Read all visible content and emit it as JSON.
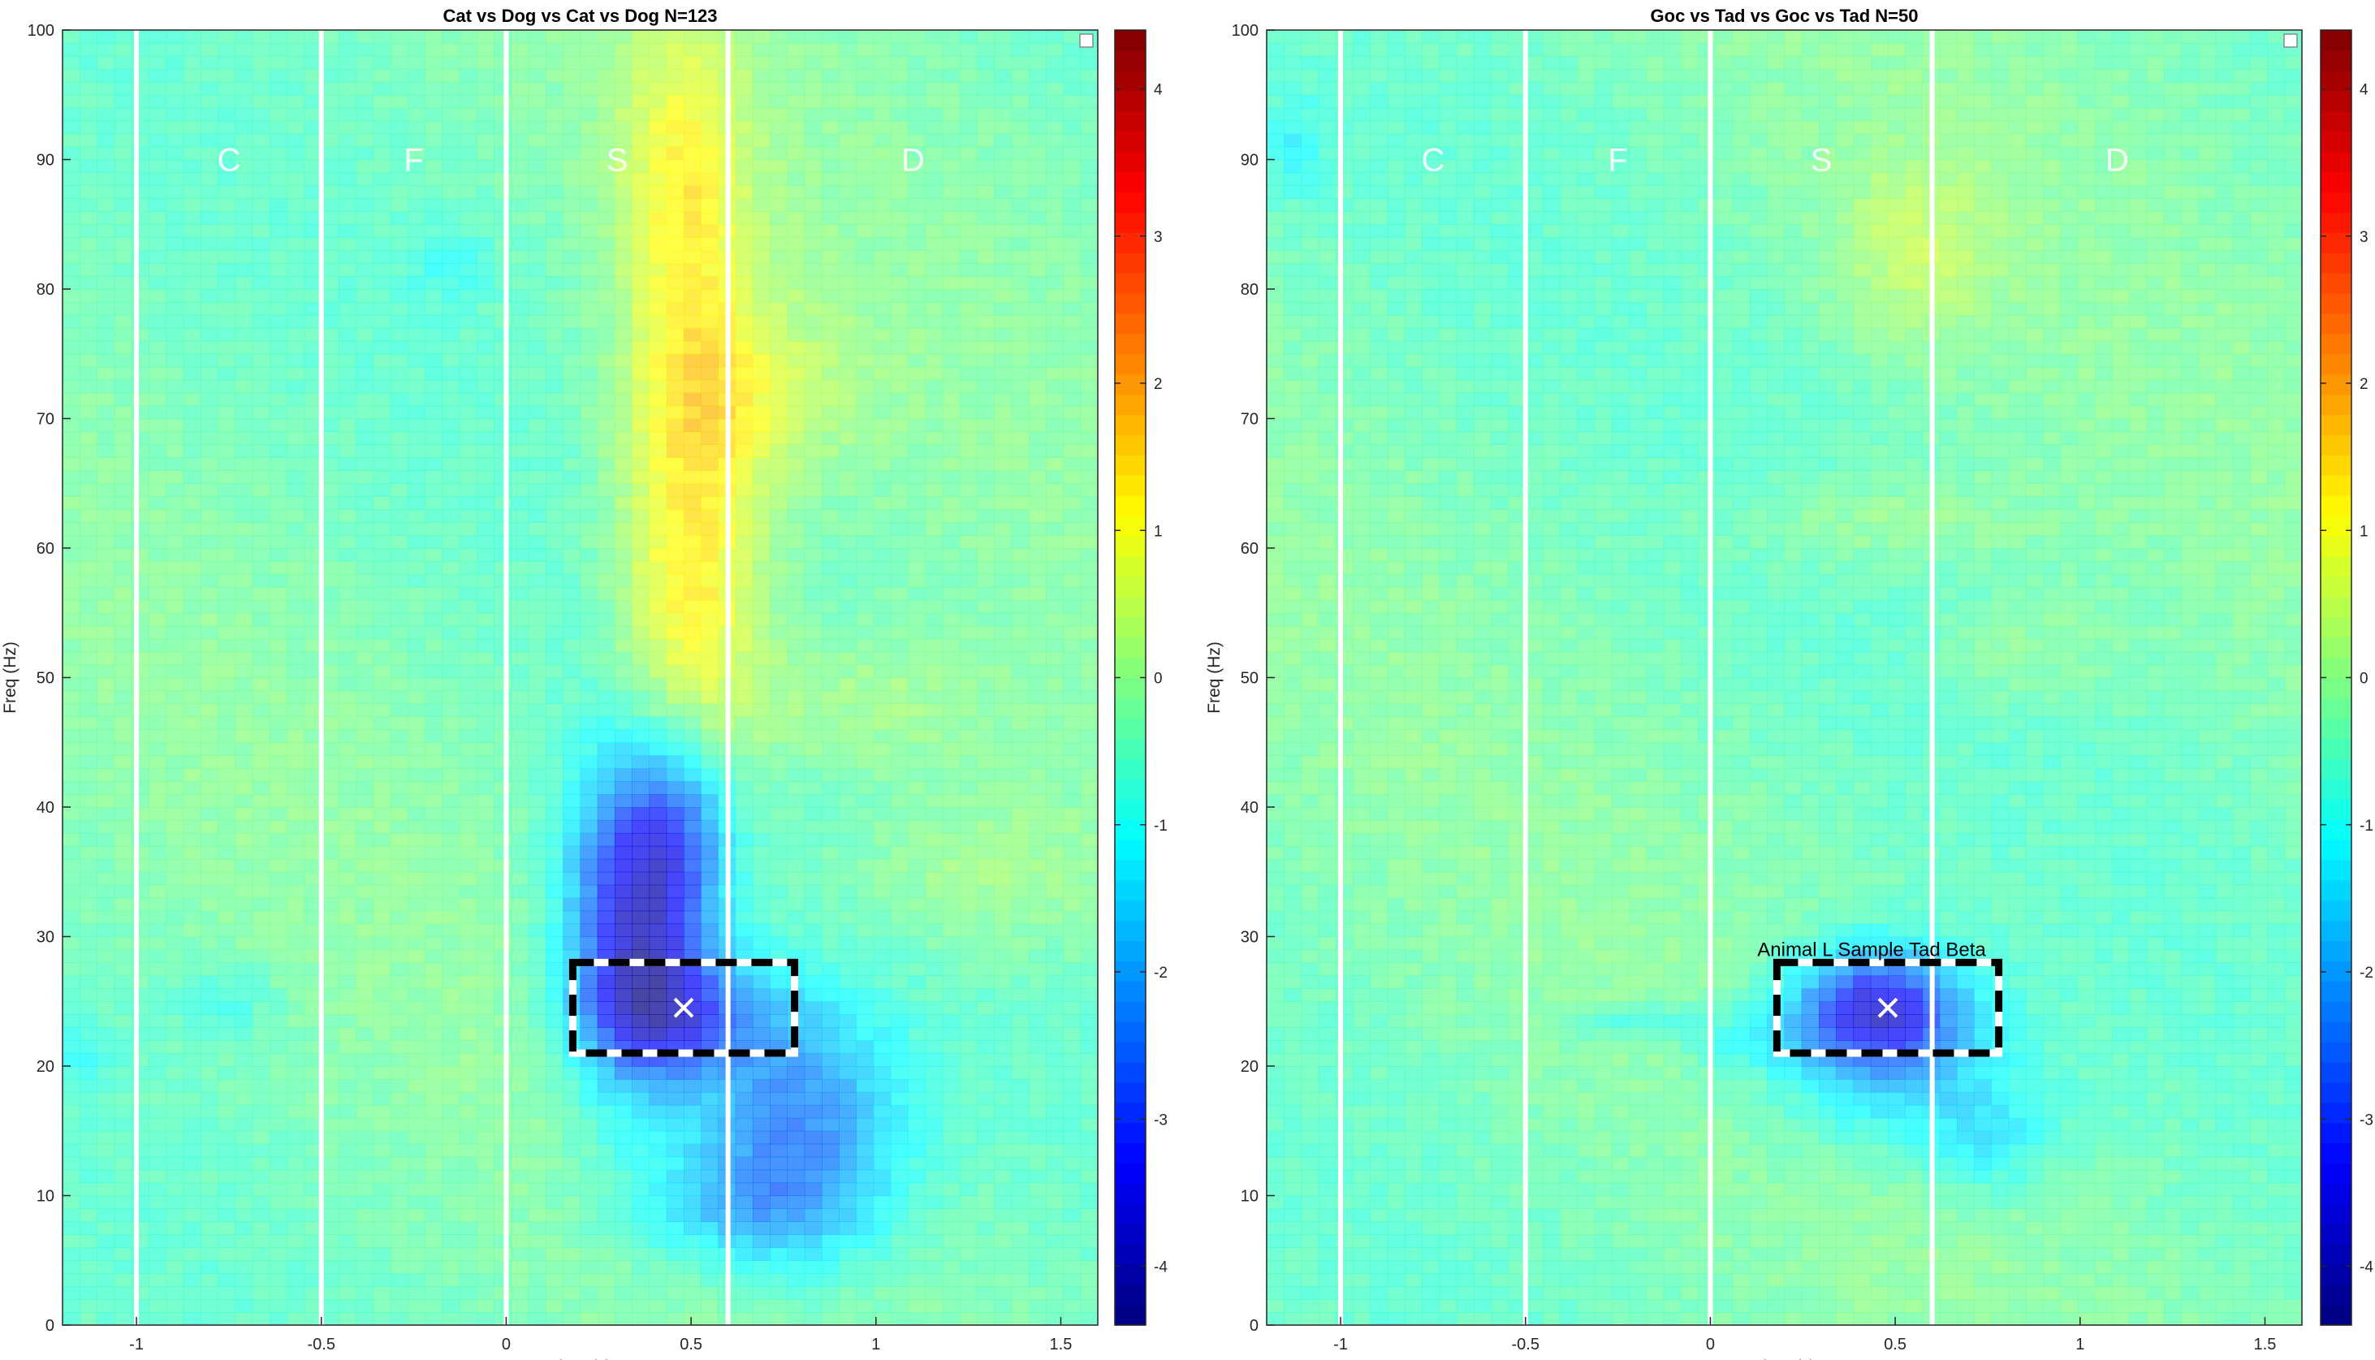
{
  "chart_data": [
    {
      "type": "heatmap",
      "title": "Cat vs Dog vs Cat vs Dog N=123",
      "xlabel": "Time (s)",
      "ylabel": "Freq (Hz)",
      "xlim": [
        -1.2,
        1.6
      ],
      "ylim": [
        0,
        100
      ],
      "xticks": [
        -1,
        -0.5,
        0,
        0.5,
        1,
        1.5
      ],
      "xtick_labels": [
        "-1",
        "-0.5",
        "0",
        "0.5",
        "1",
        "1.5"
      ],
      "yticks": [
        0,
        10,
        20,
        30,
        40,
        50,
        60,
        70,
        80,
        90,
        100
      ],
      "ytick_labels": [
        "0",
        "10",
        "20",
        "30",
        "40",
        "50",
        "60",
        "70",
        "80",
        "90",
        "100"
      ],
      "epoch_lines": [
        -1,
        -0.5,
        0,
        0.6
      ],
      "epoch_labels": [
        {
          "text": "C",
          "x": -0.75,
          "y": 90
        },
        {
          "text": "F",
          "x": -0.25,
          "y": 90
        },
        {
          "text": "S",
          "x": 0.3,
          "y": 90
        },
        {
          "text": "D",
          "x": 1.1,
          "y": 90
        }
      ],
      "roi": {
        "x0": 0.18,
        "x1": 0.78,
        "y0": 21,
        "y1": 28
      },
      "peak_marker": {
        "x": 0.48,
        "y": 24.5
      },
      "roi_label": "",
      "colorbar": {
        "ticks": [
          -4,
          -3,
          -2,
          -1,
          0,
          1,
          2,
          3,
          4
        ],
        "tick_labels": [
          "-4",
          "-3",
          "-2",
          "-1",
          "0",
          "1",
          "2",
          "3",
          "4"
        ],
        "range": [
          -4.4,
          4.4
        ]
      },
      "clusters": [
        {
          "cx": 0.35,
          "cy": 31,
          "sx": 0.13,
          "sy": 9,
          "amp": -3.4
        },
        {
          "cx": 0.48,
          "cy": 24,
          "sx": 0.17,
          "sy": 3.2,
          "amp": -1.8
        },
        {
          "cx": 0.78,
          "cy": 15,
          "sx": 0.2,
          "sy": 7,
          "amp": -2.1
        },
        {
          "cx": 0.6,
          "cy": 9,
          "sx": 0.22,
          "sy": 3,
          "amp": -0.9
        },
        {
          "cx": 0.48,
          "cy": 38,
          "sx": 0.1,
          "sy": 5,
          "amp": -1.2
        },
        {
          "cx": 0.5,
          "cy": 66,
          "sx": 0.14,
          "sy": 14,
          "amp": 1.2
        },
        {
          "cx": 0.65,
          "cy": 72,
          "sx": 0.2,
          "sy": 5,
          "amp": 0.8
        },
        {
          "cx": 0.48,
          "cy": 89,
          "sx": 0.12,
          "sy": 9,
          "amp": 1.1
        },
        {
          "cx": 0.5,
          "cy": 55,
          "sx": 0.14,
          "sy": 8,
          "amp": 0.9
        },
        {
          "cx": 0.95,
          "cy": 48,
          "sx": 0.28,
          "sy": 4,
          "amp": 0.6
        },
        {
          "cx": 1.3,
          "cy": 35,
          "sx": 0.28,
          "sy": 5,
          "amp": 0.65
        },
        {
          "cx": -0.75,
          "cy": 25,
          "sx": 0.1,
          "sy": 2,
          "amp": -0.5
        },
        {
          "cx": -1.15,
          "cy": 21,
          "sx": 0.06,
          "sy": 2,
          "amp": -0.5
        },
        {
          "cx": -0.15,
          "cy": 82,
          "sx": 0.08,
          "sy": 2,
          "amp": -0.5
        }
      ]
    },
    {
      "type": "heatmap",
      "title": "Goc vs Tad vs Goc vs Tad N=50",
      "xlabel": "Time (s)",
      "ylabel": "Freq (Hz)",
      "xlim": [
        -1.2,
        1.6
      ],
      "ylim": [
        0,
        100
      ],
      "xticks": [
        -1,
        -0.5,
        0,
        0.5,
        1,
        1.5
      ],
      "xtick_labels": [
        "-1",
        "-0.5",
        "0",
        "0.5",
        "1",
        "1.5"
      ],
      "yticks": [
        0,
        10,
        20,
        30,
        40,
        50,
        60,
        70,
        80,
        90,
        100
      ],
      "ytick_labels": [
        "0",
        "10",
        "20",
        "30",
        "40",
        "50",
        "60",
        "70",
        "80",
        "90",
        "100"
      ],
      "epoch_lines": [
        -1,
        -0.5,
        0,
        0.6
      ],
      "epoch_labels": [
        {
          "text": "C",
          "x": -0.75,
          "y": 90
        },
        {
          "text": "F",
          "x": -0.25,
          "y": 90
        },
        {
          "text": "S",
          "x": 0.3,
          "y": 90
        },
        {
          "text": "D",
          "x": 1.1,
          "y": 90
        }
      ],
      "roi": {
        "x0": 0.18,
        "x1": 0.78,
        "y0": 21,
        "y1": 28
      },
      "peak_marker": {
        "x": 0.48,
        "y": 24.5
      },
      "roi_label": "Animal L Sample Tad Beta",
      "colorbar": {
        "ticks": [
          -4,
          -3,
          -2,
          -1,
          0,
          1,
          2,
          3,
          4
        ],
        "tick_labels": [
          "-4",
          "-3",
          "-2",
          "-1",
          "0",
          "1",
          "2",
          "3",
          "4"
        ],
        "range": [
          -4.4,
          4.4
        ]
      },
      "clusters": [
        {
          "cx": 0.45,
          "cy": 24.5,
          "sx": 0.16,
          "sy": 3.2,
          "amp": -3.2
        },
        {
          "cx": 0.5,
          "cy": 19,
          "sx": 0.25,
          "sy": 4,
          "amp": -1.1
        },
        {
          "cx": 0.75,
          "cy": 14,
          "sx": 0.12,
          "sy": 3,
          "amp": -0.8
        },
        {
          "cx": 0.1,
          "cy": 22,
          "sx": 0.12,
          "sy": 1.6,
          "amp": -0.6
        },
        {
          "cx": -0.2,
          "cy": 23.5,
          "sx": 0.14,
          "sy": 1,
          "amp": -0.6
        },
        {
          "cx": 0.55,
          "cy": 83,
          "sx": 0.15,
          "sy": 5,
          "amp": 0.7
        },
        {
          "cx": 0.45,
          "cy": 62,
          "sx": 0.3,
          "sy": 2.5,
          "amp": 0.5
        },
        {
          "cx": 0.85,
          "cy": 52,
          "sx": 0.18,
          "sy": 3,
          "amp": 0.4
        },
        {
          "cx": -1.12,
          "cy": 91,
          "sx": 0.06,
          "sy": 2.5,
          "amp": -0.6
        }
      ]
    }
  ]
}
